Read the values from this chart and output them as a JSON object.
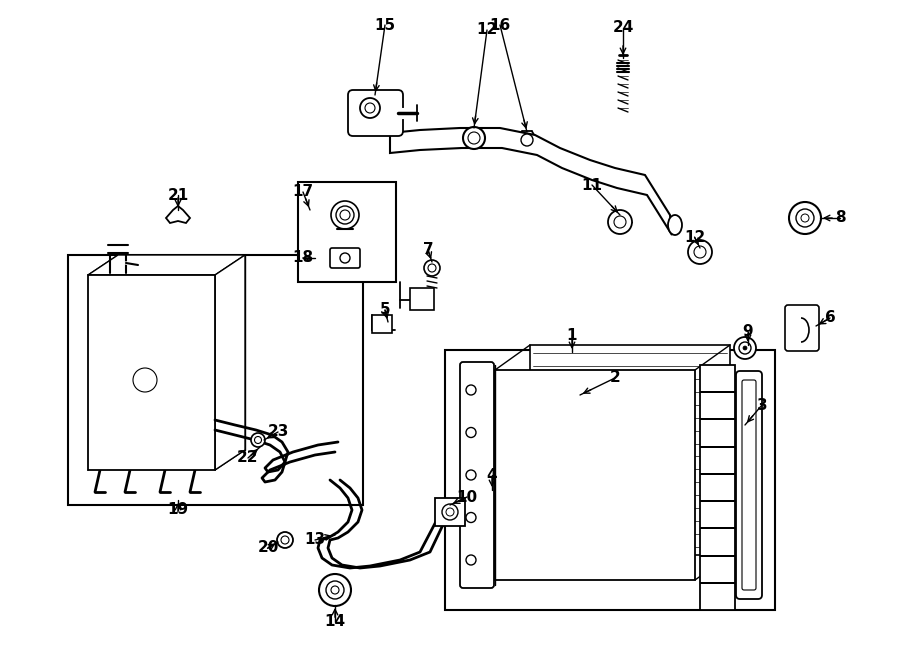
{
  "background_color": "#ffffff",
  "line_color": "#000000",
  "fig_width": 9.0,
  "fig_height": 6.61,
  "dpi": 100
}
